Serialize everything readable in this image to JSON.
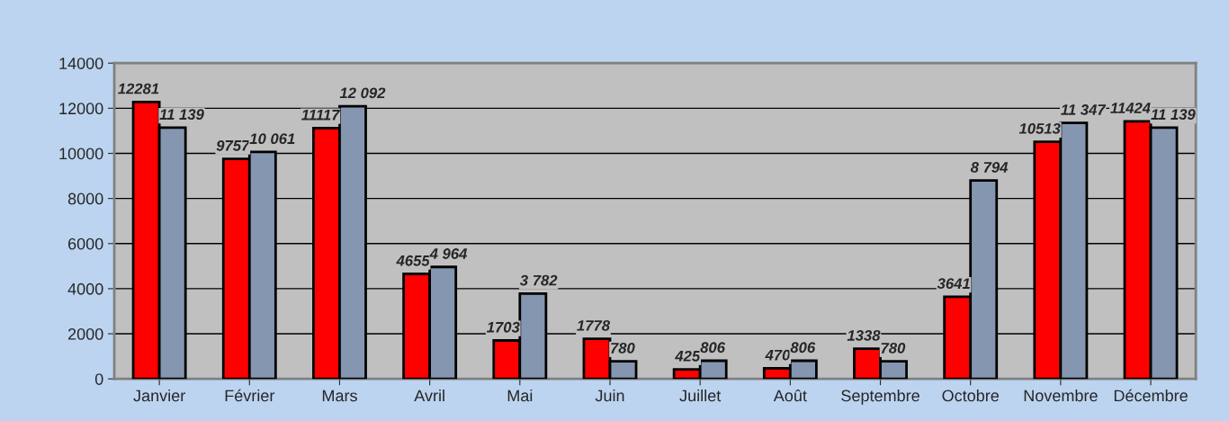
{
  "chart_data": {
    "type": "bar",
    "categories": [
      "Janvier",
      "Février",
      "Mars",
      "Avril",
      "Mai",
      "Juin",
      "Juillet",
      "Août",
      "Septembre",
      "Octobre",
      "Novembre",
      "Décembre"
    ],
    "series": [
      {
        "color": "#ff0000",
        "values": [
          12281,
          9757,
          11117,
          4655,
          1703,
          1778,
          425,
          470,
          1338,
          3641,
          10513,
          11424
        ],
        "value_labels": [
          "12281",
          "9757",
          "11117",
          "4655",
          "1703",
          "1778",
          "425",
          "470",
          "1338",
          "3641",
          "10513",
          "11424"
        ]
      },
      {
        "color": "#8496b0",
        "values": [
          11139,
          10061,
          12092,
          4964,
          3782,
          780,
          806,
          806,
          780,
          8794,
          11347,
          11139
        ],
        "value_labels": [
          "11 139",
          "10 061",
          "12 092",
          "4 964",
          "3 782",
          "780",
          "806",
          "806",
          "780",
          "8 794",
          "11 347",
          "11 139"
        ]
      }
    ],
    "ylim": [
      0,
      14000
    ],
    "yticks": [
      0,
      2000,
      4000,
      6000,
      8000,
      10000,
      12000,
      14000
    ],
    "grid": "y",
    "legend": false
  }
}
